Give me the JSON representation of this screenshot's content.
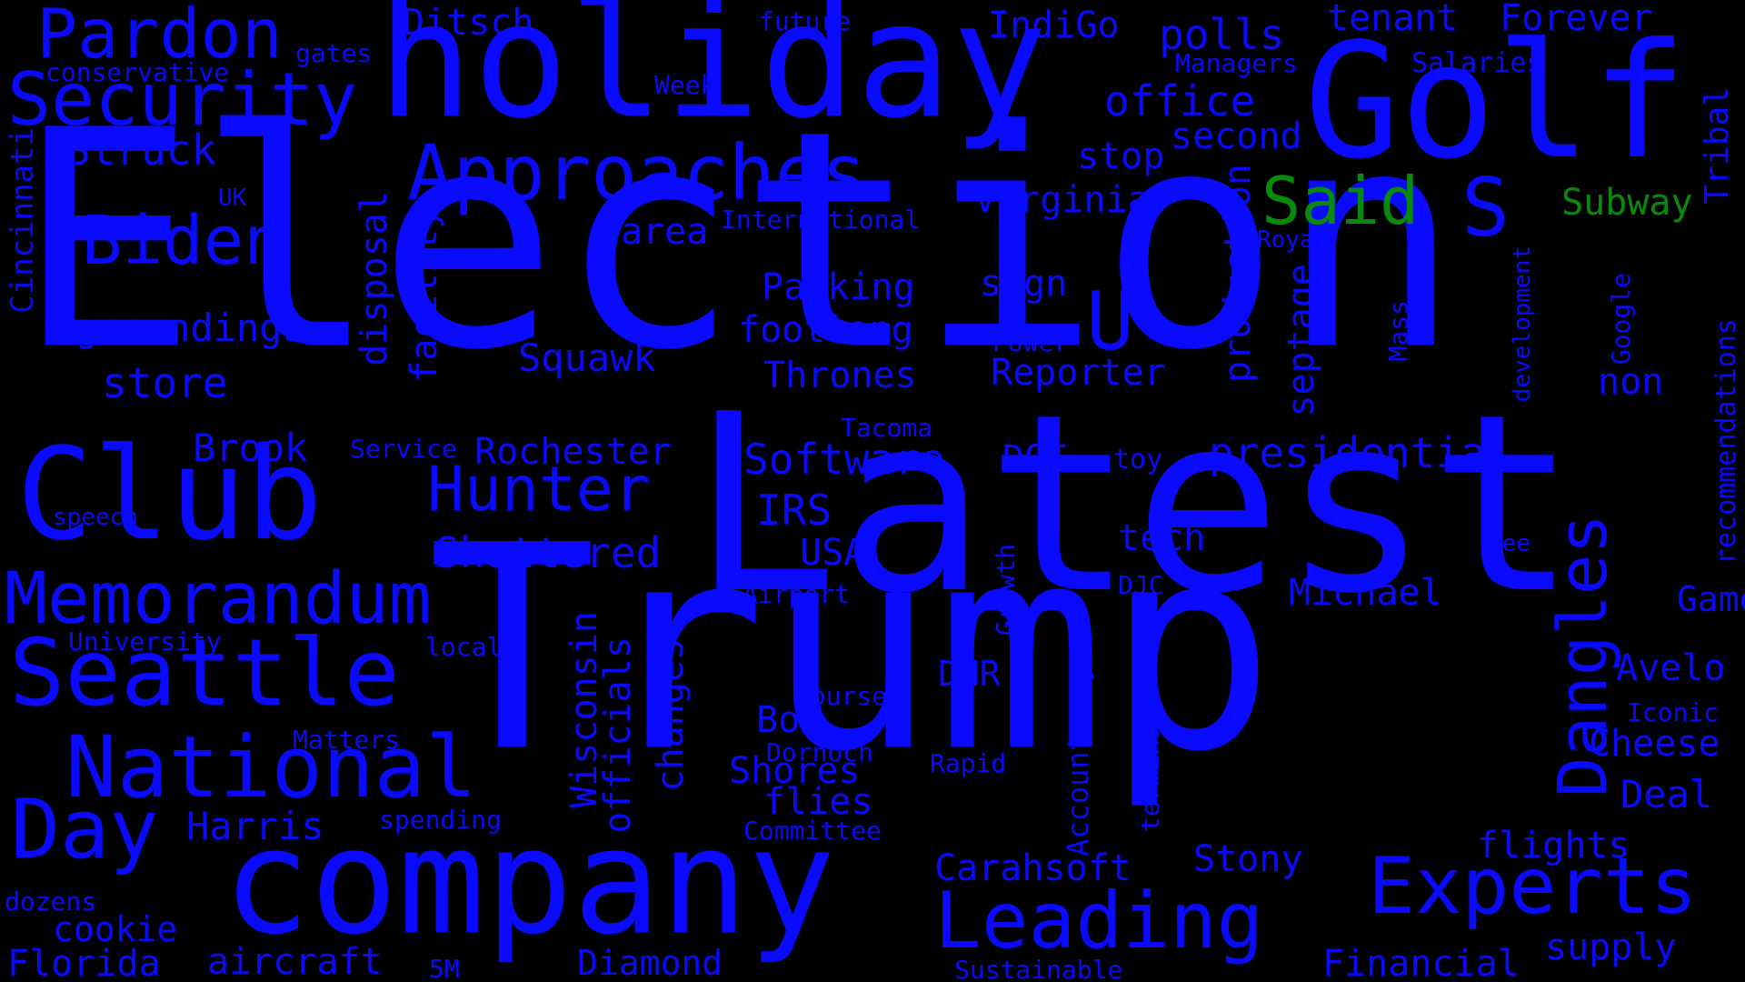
{
  "palette": {
    "background": "#000000",
    "primary": "#0a0aff",
    "accent": "#0a8a0a"
  },
  "words": [
    {
      "id": "election",
      "text": "Election"
    },
    {
      "id": "trump",
      "text": "Trump"
    },
    {
      "id": "latest",
      "text": "Latest"
    },
    {
      "id": "holiday",
      "text": "holiday"
    },
    {
      "id": "golf",
      "text": "Golf"
    },
    {
      "id": "company",
      "text": "company"
    },
    {
      "id": "club",
      "text": "Club"
    },
    {
      "id": "security",
      "text": "Security"
    },
    {
      "id": "pardon",
      "text": "Pardon"
    },
    {
      "id": "approaches",
      "text": "Approaches"
    },
    {
      "id": "biden",
      "text": "Biden"
    },
    {
      "id": "memorandum",
      "text": "Memorandum"
    },
    {
      "id": "seattle",
      "text": "Seattle"
    },
    {
      "id": "national",
      "text": "National"
    },
    {
      "id": "day",
      "text": "Day"
    },
    {
      "id": "experts",
      "text": "Experts"
    },
    {
      "id": "leading",
      "text": "Leading"
    },
    {
      "id": "hunter",
      "text": "Hunter"
    },
    {
      "id": "dangles",
      "text": "Dangles"
    },
    {
      "id": "said",
      "text": "Said"
    },
    {
      "id": "s",
      "text": "S"
    },
    {
      "id": "u",
      "text": "U"
    },
    {
      "id": "struck",
      "text": "Struck"
    },
    {
      "id": "groundings",
      "text": "groundings"
    },
    {
      "id": "store",
      "text": "store"
    },
    {
      "id": "brook",
      "text": "Brook"
    },
    {
      "id": "harris",
      "text": "Harris"
    },
    {
      "id": "florida",
      "text": "Florida"
    },
    {
      "id": "aircraft",
      "text": "aircraft"
    },
    {
      "id": "cookie",
      "text": "cookie"
    },
    {
      "id": "diamond",
      "text": "Diamond"
    },
    {
      "id": "shuttered",
      "text": "Shuttered"
    },
    {
      "id": "rochester",
      "text": "Rochester"
    },
    {
      "id": "irs",
      "text": "IRS"
    },
    {
      "id": "usa",
      "text": "USA"
    },
    {
      "id": "squawk",
      "text": "Squawk"
    },
    {
      "id": "software",
      "text": "Software"
    },
    {
      "id": "thrones",
      "text": "Thrones"
    },
    {
      "id": "footlong",
      "text": "footlong"
    },
    {
      "id": "packing",
      "text": "Packing"
    },
    {
      "id": "area",
      "text": "area"
    },
    {
      "id": "international",
      "text": "International"
    },
    {
      "id": "virginia",
      "text": "Virginia"
    },
    {
      "id": "sign",
      "text": "sign"
    },
    {
      "id": "reporter",
      "text": "Reporter"
    },
    {
      "id": "power",
      "text": "Power"
    },
    {
      "id": "doe",
      "text": "DOE"
    },
    {
      "id": "toy",
      "text": "toy"
    },
    {
      "id": "presidential",
      "text": "presidential"
    },
    {
      "id": "tech",
      "text": "tech"
    },
    {
      "id": "michael",
      "text": "Michael"
    },
    {
      "id": "djc",
      "text": "DJC"
    },
    {
      "id": "dnr",
      "text": "DNR"
    },
    {
      "id": "stony",
      "text": "Stony"
    },
    {
      "id": "carahsoft",
      "text": "Carahsoft"
    },
    {
      "id": "financial",
      "text": "Financial"
    },
    {
      "id": "supply",
      "text": "supply"
    },
    {
      "id": "flights",
      "text": "flights"
    },
    {
      "id": "deal",
      "text": "Deal"
    },
    {
      "id": "cheese",
      "text": "Cheese"
    },
    {
      "id": "iconic",
      "text": "Iconic"
    },
    {
      "id": "avelo",
      "text": "Avelo"
    },
    {
      "id": "game",
      "text": "Game"
    },
    {
      "id": "tee",
      "text": "Tee"
    },
    {
      "id": "non",
      "text": "non"
    },
    {
      "id": "subway",
      "text": "Subway"
    },
    {
      "id": "royal",
      "text": "Royal"
    },
    {
      "id": "salaries",
      "text": "Salaries"
    },
    {
      "id": "forever",
      "text": "Forever"
    },
    {
      "id": "tenant",
      "text": "tenant"
    },
    {
      "id": "managers",
      "text": "Managers"
    },
    {
      "id": "polls",
      "text": "polls"
    },
    {
      "id": "office",
      "text": "office"
    },
    {
      "id": "second",
      "text": "second"
    },
    {
      "id": "stop",
      "text": "stop"
    },
    {
      "id": "indigo",
      "text": "IndiGo"
    },
    {
      "id": "future",
      "text": "future"
    },
    {
      "id": "ditsch",
      "text": "Ditsch"
    },
    {
      "id": "week",
      "text": "Week"
    },
    {
      "id": "gates",
      "text": "gates"
    },
    {
      "id": "conservative",
      "text": "conservative"
    },
    {
      "id": "uk",
      "text": "UK"
    },
    {
      "id": "speech",
      "text": "speech"
    },
    {
      "id": "service",
      "text": "Service"
    },
    {
      "id": "tacoma",
      "text": "Tacoma"
    },
    {
      "id": "airport",
      "text": "Airport"
    },
    {
      "id": "university",
      "text": "University"
    },
    {
      "id": "local",
      "text": "local"
    },
    {
      "id": "matters",
      "text": "Matters"
    },
    {
      "id": "spending",
      "text": "spending"
    },
    {
      "id": "dozens",
      "text": "dozens"
    },
    {
      "id": "5m",
      "text": "5M"
    },
    {
      "id": "committee",
      "text": "Committee"
    },
    {
      "id": "flies",
      "text": "flies"
    },
    {
      "id": "shores",
      "text": "Shores"
    },
    {
      "id": "box",
      "text": "Box"
    },
    {
      "id": "dornoch",
      "text": "Dornoch"
    },
    {
      "id": "course",
      "text": "course"
    },
    {
      "id": "rapid",
      "text": "Rapid"
    },
    {
      "id": "sustainable",
      "text": "Sustainable"
    },
    {
      "id": "cincinnati",
      "text": "Cincinnati"
    },
    {
      "id": "disposal",
      "text": "disposal"
    },
    {
      "id": "facility",
      "text": "facility"
    },
    {
      "id": "wisconsin",
      "text": "Wisconsin"
    },
    {
      "id": "officials",
      "text": "officials"
    },
    {
      "id": "changes",
      "text": "changes"
    },
    {
      "id": "growth",
      "text": "Growth"
    },
    {
      "id": "accountancy",
      "text": "Accountancy"
    },
    {
      "id": "terminal",
      "text": "terminal"
    },
    {
      "id": "production",
      "text": "production"
    },
    {
      "id": "septage",
      "text": "septage"
    },
    {
      "id": "mass",
      "text": "Mass"
    },
    {
      "id": "development",
      "text": "development"
    },
    {
      "id": "google",
      "text": "Google"
    },
    {
      "id": "tribal",
      "text": "Tribal"
    },
    {
      "id": "recommendations",
      "text": "recommendations"
    }
  ]
}
